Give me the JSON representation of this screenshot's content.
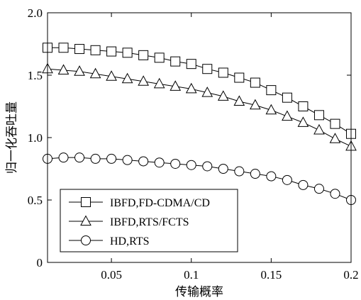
{
  "chart_data": {
    "type": "line",
    "xlabel": "传输概率",
    "ylabel": "归一化吞吐量",
    "xlim": [
      0.01,
      0.2
    ],
    "ylim": [
      0,
      2.0
    ],
    "xticks": [
      0.05,
      0.1,
      0.15,
      0.2
    ],
    "xtick_labels": [
      "0.05",
      "0.1",
      "0.15",
      "0.2"
    ],
    "yticks": [
      0,
      0.5,
      1.0,
      1.5,
      2.0
    ],
    "ytick_labels": [
      "0",
      "0.5",
      "1.0",
      "1.5",
      "2.0"
    ],
    "grid": false,
    "legend_position": "bottom-left",
    "x": [
      0.01,
      0.02,
      0.03,
      0.04,
      0.05,
      0.06,
      0.07,
      0.08,
      0.09,
      0.1,
      0.11,
      0.12,
      0.13,
      0.14,
      0.15,
      0.16,
      0.17,
      0.18,
      0.19,
      0.2
    ],
    "series": [
      {
        "name": "IBFD,FD-CDMA/CD",
        "marker": "square",
        "values": [
          1.72,
          1.72,
          1.71,
          1.7,
          1.69,
          1.68,
          1.66,
          1.64,
          1.61,
          1.59,
          1.55,
          1.52,
          1.48,
          1.44,
          1.38,
          1.32,
          1.25,
          1.18,
          1.11,
          1.03
        ]
      },
      {
        "name": "IBFD,RTS/FCTS",
        "marker": "triangle",
        "values": [
          1.55,
          1.54,
          1.53,
          1.51,
          1.49,
          1.47,
          1.45,
          1.43,
          1.41,
          1.39,
          1.36,
          1.33,
          1.29,
          1.26,
          1.22,
          1.17,
          1.12,
          1.06,
          0.99,
          0.93
        ]
      },
      {
        "name": "HD,RTS",
        "marker": "circle",
        "values": [
          0.83,
          0.84,
          0.84,
          0.83,
          0.83,
          0.82,
          0.81,
          0.8,
          0.79,
          0.78,
          0.77,
          0.75,
          0.73,
          0.71,
          0.69,
          0.66,
          0.62,
          0.59,
          0.55,
          0.5
        ]
      }
    ]
  }
}
